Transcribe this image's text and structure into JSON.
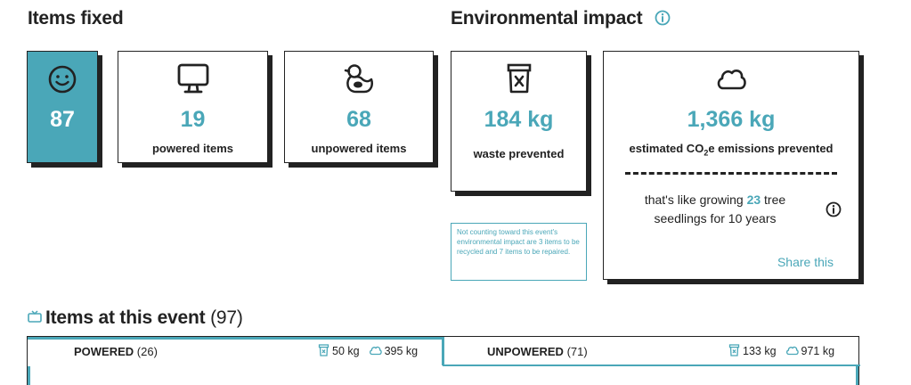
{
  "items_fixed": {
    "heading": "Items fixed",
    "total": {
      "value": "87",
      "icon": "smiley-icon"
    },
    "powered": {
      "value": "19",
      "label": "powered items",
      "icon": "monitor-icon"
    },
    "unpowered": {
      "value": "68",
      "label": "unpowered items",
      "icon": "rubber-duck-icon"
    }
  },
  "environmental_impact": {
    "heading": "Environmental impact",
    "waste": {
      "value": "184 kg",
      "label": "waste prevented",
      "icon": "trash-bin-icon"
    },
    "emissions": {
      "value": "1,366 kg",
      "label_prefix": "estimated CO",
      "label_sub": "2",
      "label_suffix": "e emissions prevented",
      "icon": "cloud-icon",
      "tree_prefix": "that's like growing ",
      "tree_count": "23",
      "tree_suffix": " tree seedlings for 10 years",
      "share_label": "Share this"
    },
    "note": "Not counting toward this event's environmental impact are 3 items to be recycled and 7 items to be repaired."
  },
  "items_at_event": {
    "heading": "Items at this event",
    "count": "(97)",
    "tabs": [
      {
        "label": "POWERED",
        "count": "(26)",
        "waste": "50 kg",
        "co2": "395 kg"
      },
      {
        "label": "UNPOWERED",
        "count": "(71)",
        "waste": "133 kg",
        "co2": "971 kg"
      }
    ]
  },
  "colors": {
    "accent": "#4aa7b8",
    "ink": "#222222"
  }
}
